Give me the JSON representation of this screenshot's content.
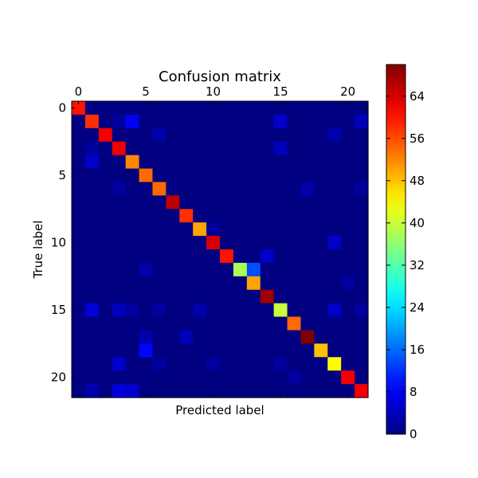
{
  "chart_data": {
    "type": "heatmap",
    "title": "Confusion matrix",
    "xlabel": "Predicted label",
    "ylabel": "True label",
    "n_classes": 22,
    "x_tick_values": [
      0,
      5,
      10,
      15,
      20
    ],
    "y_tick_values": [
      0,
      5,
      10,
      15,
      20
    ],
    "x_axis_position": "top",
    "colormap": "jet",
    "color_range": [
      0,
      70
    ],
    "colorbar_ticks": [
      0,
      8,
      16,
      24,
      32,
      40,
      48,
      56,
      64
    ],
    "grid": false,
    "diagonal": [
      60,
      58,
      62,
      62,
      52,
      54,
      54,
      66,
      58,
      50,
      64,
      60,
      38,
      50,
      68,
      40,
      54,
      70,
      48,
      44,
      62,
      62
    ],
    "off_diagonal": [
      {
        "row": 1,
        "col": 4,
        "value": 8
      },
      {
        "row": 1,
        "col": 15,
        "value": 5
      },
      {
        "row": 1,
        "col": 21,
        "value": 4
      },
      {
        "row": 1,
        "col": 3,
        "value": 2
      },
      {
        "row": 2,
        "col": 6,
        "value": 3
      },
      {
        "row": 2,
        "col": 19,
        "value": 3
      },
      {
        "row": 3,
        "col": 15,
        "value": 4
      },
      {
        "row": 3,
        "col": 1,
        "value": 2
      },
      {
        "row": 4,
        "col": 1,
        "value": 5
      },
      {
        "row": 6,
        "col": 3,
        "value": 2
      },
      {
        "row": 6,
        "col": 17,
        "value": 3
      },
      {
        "row": 6,
        "col": 21,
        "value": 2
      },
      {
        "row": 9,
        "col": 10,
        "value": 2
      },
      {
        "row": 10,
        "col": 19,
        "value": 5
      },
      {
        "row": 11,
        "col": 14,
        "value": 5
      },
      {
        "row": 12,
        "col": 13,
        "value": 14
      },
      {
        "row": 12,
        "col": 5,
        "value": 3
      },
      {
        "row": 13,
        "col": 20,
        "value": 2
      },
      {
        "row": 15,
        "col": 1,
        "value": 6
      },
      {
        "row": 15,
        "col": 3,
        "value": 4
      },
      {
        "row": 15,
        "col": 4,
        "value": 2
      },
      {
        "row": 15,
        "col": 6,
        "value": 2
      },
      {
        "row": 15,
        "col": 9,
        "value": 3
      },
      {
        "row": 15,
        "col": 19,
        "value": 5
      },
      {
        "row": 15,
        "col": 21,
        "value": 2
      },
      {
        "row": 17,
        "col": 5,
        "value": 3
      },
      {
        "row": 17,
        "col": 8,
        "value": 4
      },
      {
        "row": 18,
        "col": 5,
        "value": 9
      },
      {
        "row": 19,
        "col": 3,
        "value": 5
      },
      {
        "row": 19,
        "col": 6,
        "value": 2
      },
      {
        "row": 19,
        "col": 10,
        "value": 2
      },
      {
        "row": 19,
        "col": 15,
        "value": 2
      },
      {
        "row": 20,
        "col": 16,
        "value": 2
      },
      {
        "row": 21,
        "col": 1,
        "value": 3
      },
      {
        "row": 21,
        "col": 3,
        "value": 6
      },
      {
        "row": 21,
        "col": 4,
        "value": 5
      }
    ]
  }
}
